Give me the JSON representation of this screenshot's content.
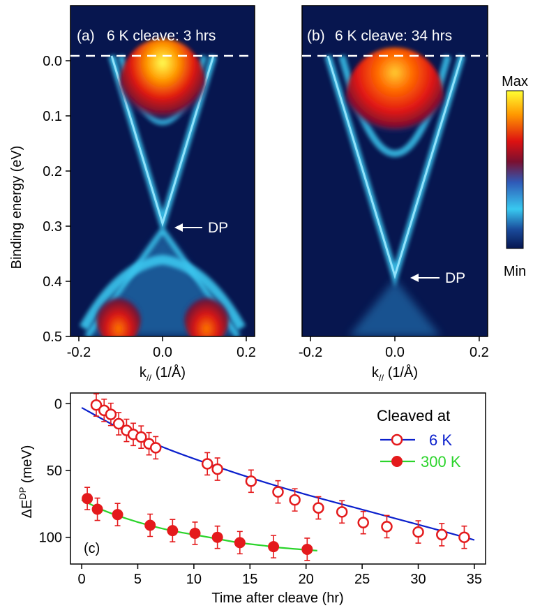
{
  "chart_data": [
    {
      "type": "heatmap",
      "panel": "(a)",
      "title": "6 K cleave: 3 hrs",
      "xlabel": "k",
      "xlabel_sub": "//",
      "xlabel_unit": " (1/Å)",
      "ylabel": "Binding energy (eV)",
      "xlim": [
        -0.22,
        0.22
      ],
      "ylim": [
        0.5,
        -0.1
      ],
      "x_ticks": [
        "-0.2",
        "0.0",
        "0.2"
      ],
      "x_tick_values": [
        -0.2,
        0.0,
        0.2
      ],
      "y_ticks": [
        "0.0",
        "0.1",
        "0.2",
        "0.3",
        "0.4",
        "0.5"
      ],
      "y_tick_values": [
        0.0,
        0.1,
        0.2,
        0.3,
        0.4,
        0.5
      ],
      "fermi_level": 0.0,
      "dirac_point": {
        "label": "DP",
        "k": 0.0,
        "energy": 0.31
      }
    },
    {
      "type": "heatmap",
      "panel": "(b)",
      "title": "6 K cleave: 34 hrs",
      "xlabel": "k",
      "xlabel_sub": "//",
      "xlabel_unit": " (1/Å)",
      "xlim": [
        -0.22,
        0.22
      ],
      "ylim": [
        0.5,
        -0.1
      ],
      "x_ticks": [
        "-0.2",
        "0.0",
        "0.2"
      ],
      "x_tick_values": [
        -0.2,
        0.0,
        0.2
      ],
      "fermi_level": 0.0,
      "dirac_point": {
        "label": "DP",
        "k": 0.0,
        "energy": 0.41
      }
    },
    {
      "type": "scatter",
      "panel": "(c)",
      "xlabel": "Time after cleave (hr)",
      "ylabel": "ΔE",
      "ylabel_sup": "DP",
      "ylabel_unit": " (meV)",
      "xlim": [
        -1,
        36
      ],
      "ylim": [
        120,
        -8
      ],
      "x_ticks": [
        "0",
        "5",
        "10",
        "15",
        "20",
        "25",
        "30",
        "35"
      ],
      "x_tick_values": [
        0,
        5,
        10,
        15,
        20,
        25,
        30,
        35
      ],
      "y_ticks": [
        "0",
        "50",
        "100"
      ],
      "y_tick_values": [
        0,
        50,
        100
      ],
      "legend_title": "Cleaved at",
      "legend_position": "top-right",
      "series": [
        {
          "name": "6 K",
          "marker": "open-circle",
          "marker_color": "#e41a1c",
          "fit_color": "#0a1fcc",
          "x": [
            1.3,
            2.0,
            2.6,
            3.3,
            4.0,
            4.6,
            5.3,
            6.0,
            6.6,
            11.2,
            12.1,
            15.1,
            17.5,
            19.0,
            21.1,
            23.2,
            25.1,
            27.2,
            30.0,
            32.1,
            34.1
          ],
          "y": [
            1,
            5,
            8,
            15,
            20,
            23,
            25,
            30,
            33,
            45,
            49,
            58,
            66,
            72,
            78,
            81,
            89,
            92,
            96,
            98,
            100
          ],
          "fit_x": [
            0,
            4,
            8,
            12,
            16,
            20,
            24,
            28,
            32,
            35
          ],
          "fit_y": [
            3,
            21,
            35,
            47,
            58,
            68,
            77,
            86,
            95,
            102
          ]
        },
        {
          "name": "300 K",
          "marker": "filled-circle",
          "marker_color": "#e41a1c",
          "fit_color": "#2bd42b",
          "x": [
            0.5,
            1.4,
            3.2,
            6.1,
            8.1,
            10.1,
            12.1,
            14.1,
            17.1,
            20.1
          ],
          "y": [
            71,
            79,
            83,
            91,
            95,
            97,
            100,
            104,
            107,
            109
          ],
          "fit_x": [
            0,
            2,
            4,
            6,
            8,
            10,
            12,
            14,
            16,
            18,
            21
          ],
          "fit_y": [
            72,
            80,
            86,
            91,
            95,
            98,
            101,
            104,
            106,
            108,
            110
          ]
        }
      ]
    }
  ],
  "colorbar": {
    "max_label": "Max",
    "min_label": "Min"
  },
  "panel_c_label": "(c)"
}
